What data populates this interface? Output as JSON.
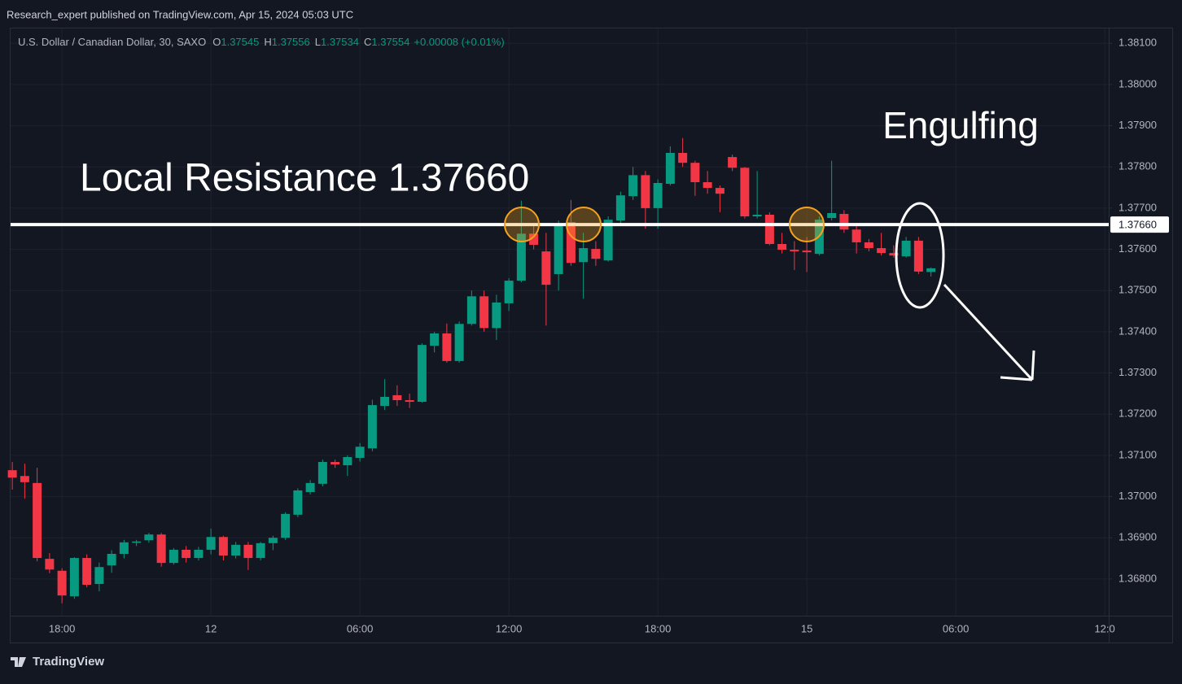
{
  "header": {
    "publisher_line": "Research_expert published on TradingView.com, Apr 15, 2024 05:03 UTC"
  },
  "chart_data": {
    "type": "candlestick",
    "title": "U.S. Dollar / Canadian Dollar, 30, SAXO",
    "legend_ohlc": [
      {
        "label": "O",
        "value": 1.37545
      },
      {
        "label": "H",
        "value": 1.37556
      },
      {
        "label": "L",
        "value": 1.37534
      },
      {
        "label": "C",
        "value": 1.37554
      }
    ],
    "change": "+0.00008 (+0.01%)",
    "up_color": "#089981",
    "down_color": "#f23645",
    "grid": true,
    "x": [
      16,
      16.5,
      17,
      17.5,
      18,
      18.5,
      19,
      19.5,
      20,
      20.5,
      21,
      21.5,
      22,
      22.5,
      23,
      23.5,
      24,
      24.5,
      25,
      25.5,
      26,
      26.5,
      27,
      27.5,
      28,
      28.5,
      29,
      29.5,
      30,
      30.5,
      31,
      31.5,
      32,
      32.5,
      33,
      33.5,
      34,
      34.5,
      35,
      35.5,
      36,
      36.5,
      37,
      37.5,
      38,
      38.5,
      39,
      39.5,
      40,
      40.5,
      41,
      41.5,
      42,
      42.5,
      43,
      43.5,
      44,
      44.5,
      45,
      45.5,
      46,
      46.5,
      47,
      47.5,
      48,
      48.5,
      49,
      49.5,
      50,
      50.5,
      51,
      51.5,
      52,
      52.5,
      53
    ],
    "open": [
      1.37064,
      1.3705,
      1.37033,
      1.36849,
      1.3682,
      1.36758,
      1.36851,
      1.36788,
      1.36833,
      1.36861,
      1.36889,
      1.36894,
      1.36908,
      1.36839,
      1.36871,
      1.36851,
      1.36871,
      1.36902,
      1.36857,
      1.36883,
      1.36851,
      1.36887,
      1.369,
      1.36956,
      1.37011,
      1.37031,
      1.37084,
      1.37076,
      1.37094,
      1.37117,
      1.3722,
      1.37246,
      1.37234,
      1.3723,
      1.37366,
      1.37396,
      1.37329,
      1.37419,
      1.37486,
      1.37409,
      1.37469,
      1.37524,
      1.37638,
      1.37595,
      1.3754,
      1.37666,
      1.37569,
      1.37601,
      1.37573,
      1.3767,
      1.37729,
      1.3778,
      1.377,
      1.37759,
      1.37834,
      1.3781,
      1.37763,
      1.37749,
      1.37824,
      1.37798,
      1.3768,
      1.37684,
      1.37613,
      1.37599,
      1.37597,
      1.37589,
      1.37676,
      1.37686,
      1.37648,
      1.37617,
      1.37603,
      1.37591,
      1.37583,
      1.37621,
      1.37545
    ],
    "high": [
      1.37084,
      1.3708,
      1.3707,
      1.36863,
      1.36826,
      1.36853,
      1.3686,
      1.3684,
      1.3687,
      1.36895,
      1.36895,
      1.36912,
      1.36912,
      1.36875,
      1.3688,
      1.36878,
      1.36922,
      1.36905,
      1.3689,
      1.3689,
      1.3689,
      1.36905,
      1.36962,
      1.3702,
      1.3704,
      1.3709,
      1.3709,
      1.371,
      1.3713,
      1.37235,
      1.37285,
      1.3727,
      1.3725,
      1.37372,
      1.374,
      1.3742,
      1.37425,
      1.375,
      1.375,
      1.3749,
      1.3753,
      1.37718,
      1.3766,
      1.3764,
      1.3767,
      1.3772,
      1.3764,
      1.3762,
      1.3768,
      1.3774,
      1.378,
      1.3779,
      1.3777,
      1.3785,
      1.3787,
      1.37815,
      1.3779,
      1.37755,
      1.3783,
      1.378,
      1.3779,
      1.3769,
      1.3764,
      1.3762,
      1.3763,
      1.3768,
      1.37815,
      1.37695,
      1.3766,
      1.37625,
      1.3764,
      1.3761,
      1.3763,
      1.3763,
      1.37556
    ],
    "low": [
      1.37017,
      1.36995,
      1.36843,
      1.36814,
      1.36741,
      1.36752,
      1.3678,
      1.3677,
      1.36815,
      1.3685,
      1.3688,
      1.36888,
      1.3683,
      1.36835,
      1.3684,
      1.36845,
      1.3686,
      1.36845,
      1.3685,
      1.36822,
      1.36845,
      1.3687,
      1.36895,
      1.3695,
      1.37005,
      1.37025,
      1.3707,
      1.3705,
      1.37085,
      1.3711,
      1.3721,
      1.3722,
      1.37215,
      1.37228,
      1.3735,
      1.37325,
      1.37325,
      1.37415,
      1.374,
      1.3738,
      1.3745,
      1.3752,
      1.376,
      1.37415,
      1.375,
      1.3756,
      1.3748,
      1.3756,
      1.3757,
      1.3766,
      1.3772,
      1.3765,
      1.3765,
      1.37755,
      1.378,
      1.3773,
      1.37735,
      1.3769,
      1.3779,
      1.37675,
      1.37675,
      1.3761,
      1.3759,
      1.3755,
      1.37545,
      1.37585,
      1.3767,
      1.3764,
      1.3759,
      1.37595,
      1.37585,
      1.3758,
      1.3758,
      1.3754,
      1.37534
    ],
    "close": [
      1.37046,
      1.37035,
      1.36851,
      1.36823,
      1.3676,
      1.36851,
      1.36786,
      1.36829,
      1.36861,
      1.36889,
      1.36891,
      1.36908,
      1.36839,
      1.36871,
      1.36851,
      1.36871,
      1.36902,
      1.36857,
      1.36883,
      1.36851,
      1.36887,
      1.369,
      1.36958,
      1.37015,
      1.37033,
      1.37084,
      1.37078,
      1.37096,
      1.37121,
      1.37222,
      1.37242,
      1.37234,
      1.3723,
      1.37368,
      1.37396,
      1.37329,
      1.37419,
      1.37486,
      1.37409,
      1.37471,
      1.37524,
      1.37638,
      1.37611,
      1.37514,
      1.37662,
      1.37567,
      1.37603,
      1.37577,
      1.37672,
      1.37731,
      1.3778,
      1.377,
      1.37761,
      1.37834,
      1.3781,
      1.37763,
      1.37749,
      1.37735,
      1.37798,
      1.3768,
      1.37684,
      1.37613,
      1.37599,
      1.37595,
      1.37593,
      1.37672,
      1.37688,
      1.37648,
      1.37617,
      1.37603,
      1.37591,
      1.37585,
      1.37621,
      1.37546,
      1.37554
    ],
    "xlim": [
      15.93,
      60.16
    ],
    "xticks": [
      {
        "value": 18,
        "label": "18:00"
      },
      {
        "value": 24,
        "label": "12"
      },
      {
        "value": 30,
        "label": "06:00"
      },
      {
        "value": 36,
        "label": "12:00"
      },
      {
        "value": 42,
        "label": "18:00"
      },
      {
        "value": 48,
        "label": "15"
      },
      {
        "value": 54,
        "label": "06:00"
      },
      {
        "value": 60,
        "label": "12:0"
      }
    ],
    "ylim": [
      1.36711,
      1.38136
    ],
    "yticks": [
      {
        "value": 1.368,
        "label": "1.36800"
      },
      {
        "value": 1.369,
        "label": "1.36900"
      },
      {
        "value": 1.37,
        "label": "1.37000"
      },
      {
        "value": 1.371,
        "label": "1.37100"
      },
      {
        "value": 1.372,
        "label": "1.37200"
      },
      {
        "value": 1.373,
        "label": "1.37300"
      },
      {
        "value": 1.374,
        "label": "1.37400"
      },
      {
        "value": 1.375,
        "label": "1.37500"
      },
      {
        "value": 1.376,
        "label": "1.37600"
      },
      {
        "value": 1.377,
        "label": "1.37700"
      },
      {
        "value": 1.378,
        "label": "1.37800"
      },
      {
        "value": 1.379,
        "label": "1.37900"
      },
      {
        "value": 1.38,
        "label": "1.38000"
      },
      {
        "value": 1.381,
        "label": "1.38100"
      }
    ],
    "resistance": {
      "value": 1.3766,
      "label": "1.37660"
    },
    "annotations": [
      "Local Resistance 1.37660",
      "Engulfing"
    ]
  },
  "footer": {
    "brand": "TradingView"
  }
}
